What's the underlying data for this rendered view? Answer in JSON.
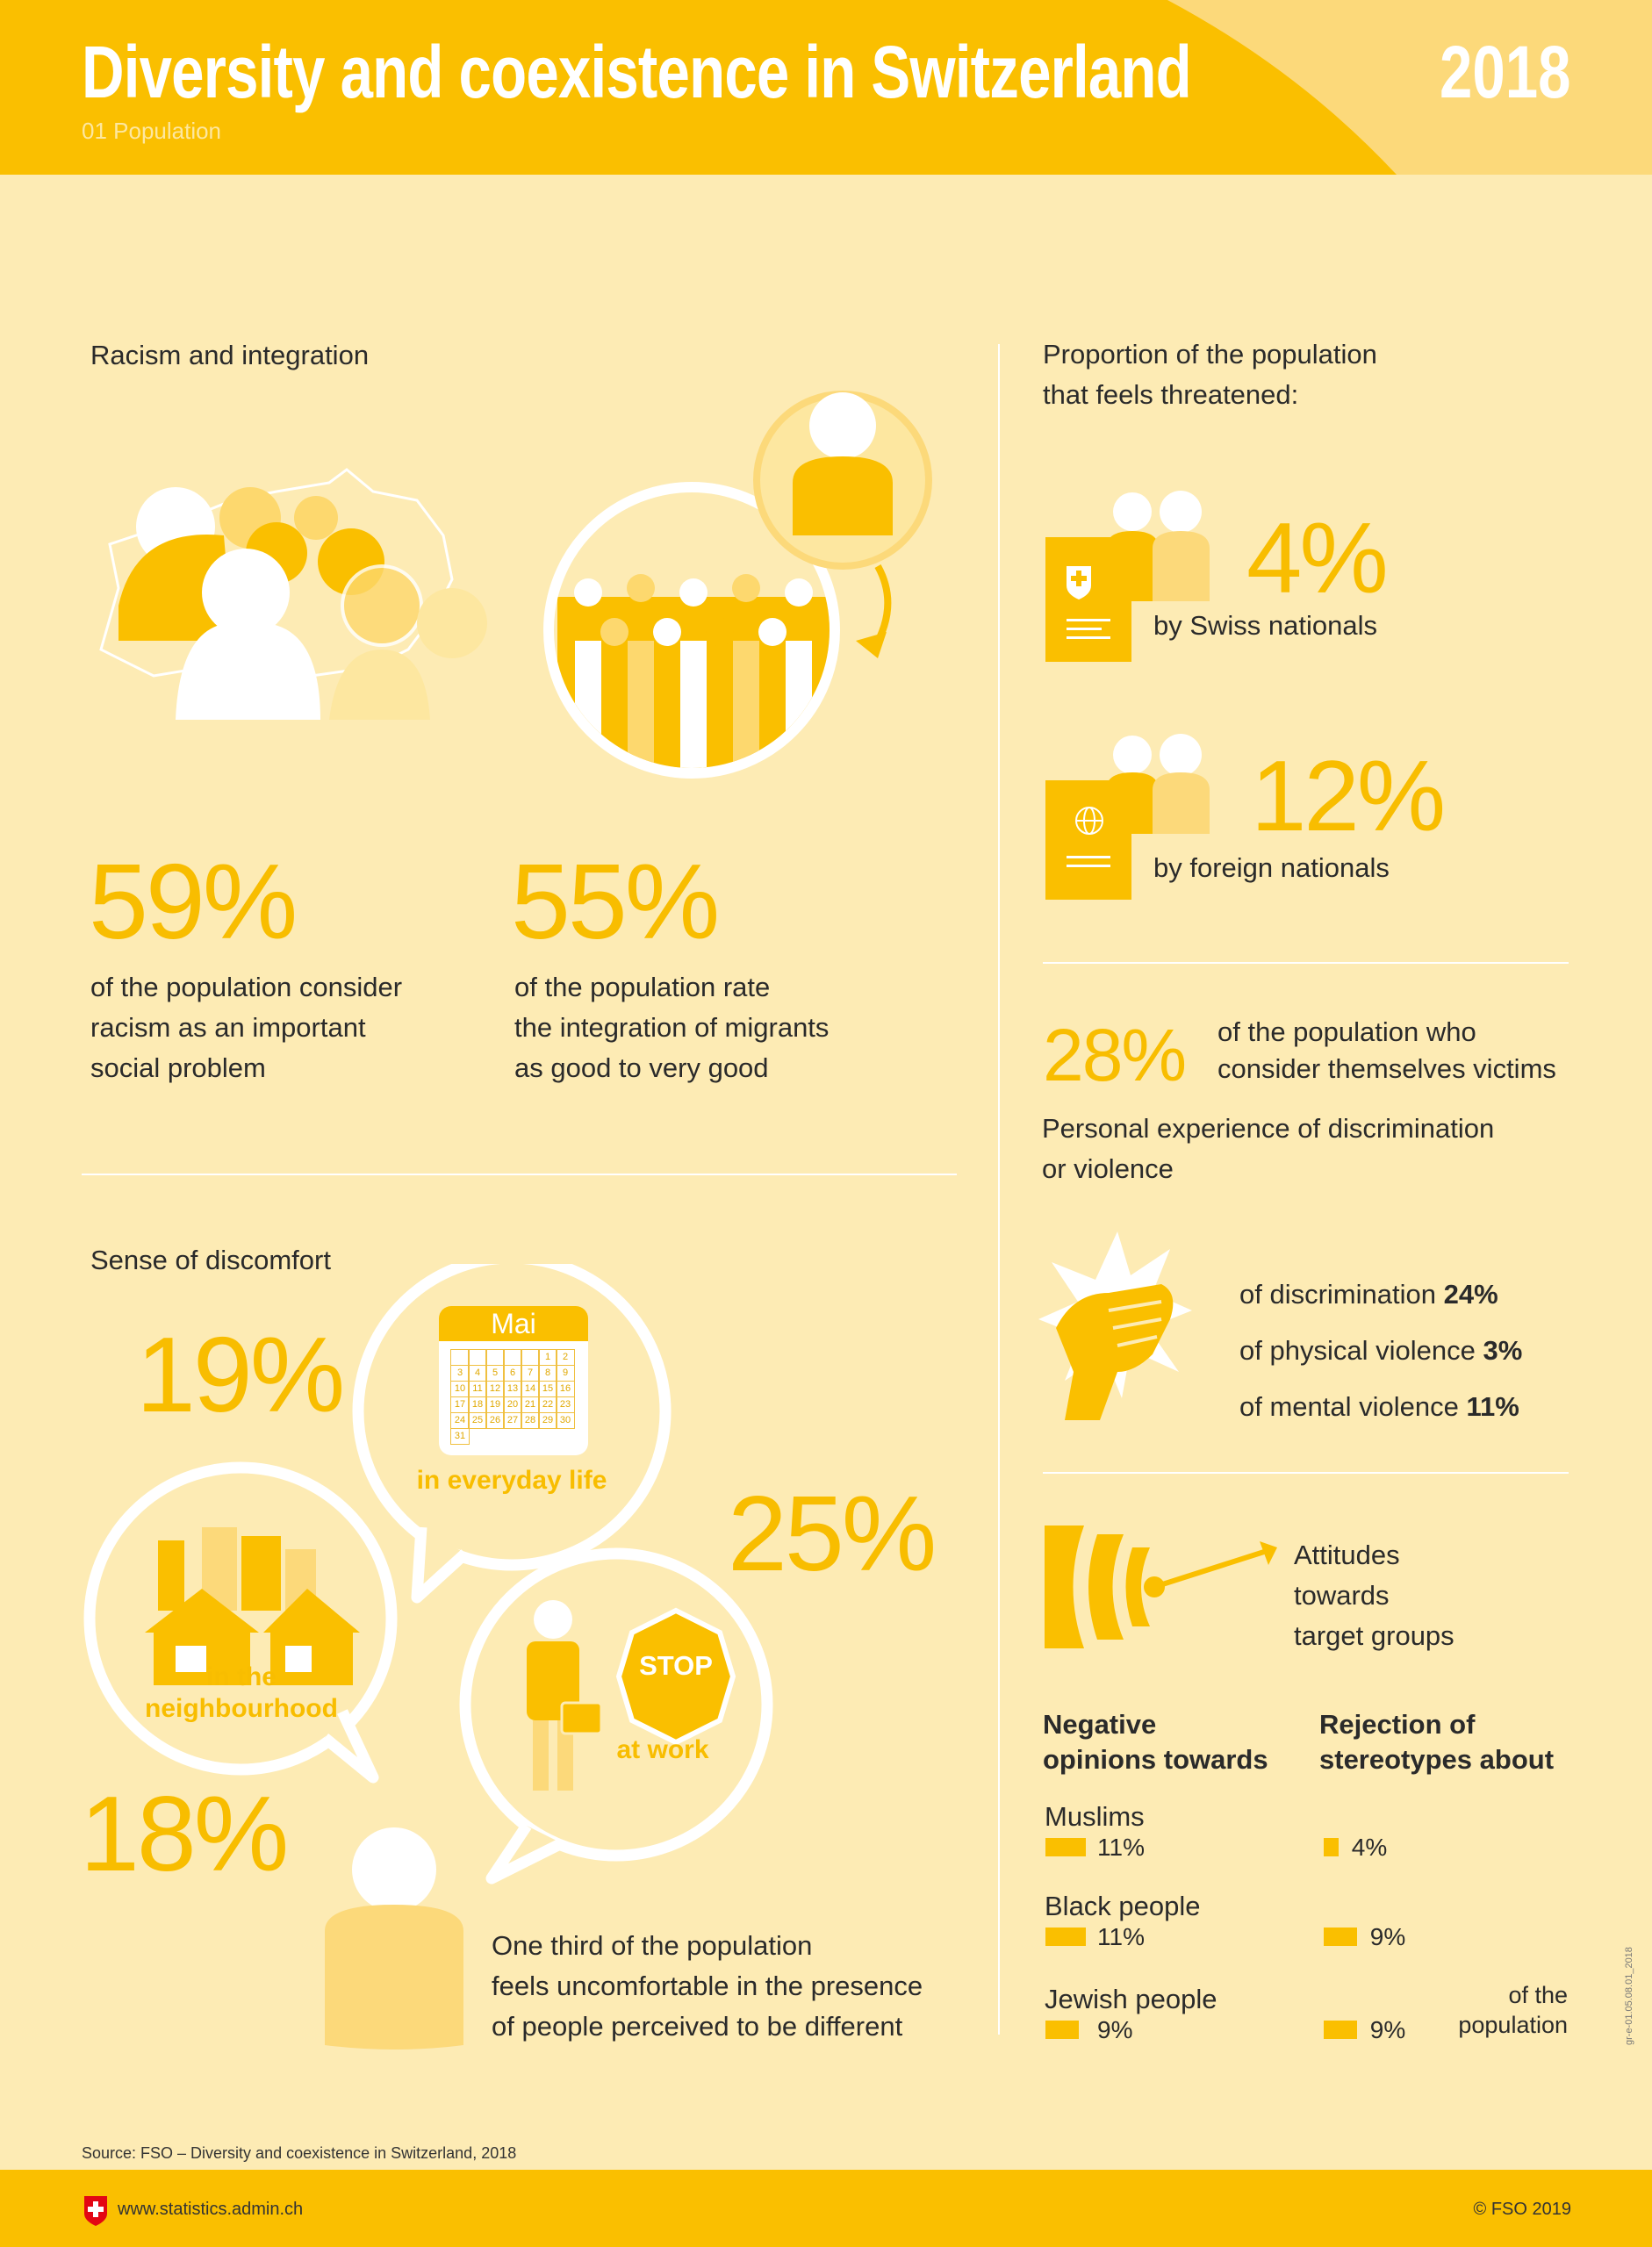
{
  "header": {
    "title": "Diversity and coexistence in Switzerland",
    "subtitle": "01 Population",
    "year": "2018"
  },
  "racism": {
    "heading": "Racism and integration",
    "stat1": {
      "value": "59%",
      "lines": [
        "of the population consider",
        "racism as an important",
        "social problem"
      ]
    },
    "stat2": {
      "value": "55%",
      "lines": [
        "of the population rate",
        "the integration of migrants",
        "as good to very good"
      ]
    }
  },
  "discomfort": {
    "heading": "Sense of discomfort",
    "everyday": {
      "value": "19%",
      "label": "in everyday life"
    },
    "work": {
      "value": "25%",
      "label": "at work",
      "sign": "STOP"
    },
    "neighbourhood": {
      "value": "18%",
      "label_lines": [
        "in the",
        "neighbourhood"
      ]
    },
    "calendar": {
      "month": "Mai",
      "days": [
        "",
        "",
        "",
        "",
        "",
        "1",
        "2",
        "3",
        "4",
        "5",
        "6",
        "7",
        "8",
        "9",
        "10",
        "11",
        "12",
        "13",
        "14",
        "15",
        "16",
        "17",
        "18",
        "19",
        "20",
        "21",
        "22",
        "23",
        "24",
        "25",
        "26",
        "27",
        "28",
        "29",
        "30",
        "31"
      ]
    },
    "summary_lines": [
      "One third of the population",
      "feels uncomfortable in the presence",
      "of people perceived to be different"
    ]
  },
  "threatened": {
    "heading_lines": [
      "Proportion of the population",
      "that feels threatened:"
    ],
    "swiss": {
      "value": "4%",
      "label": "by Swiss nationals"
    },
    "foreign": {
      "value": "12%",
      "label": "by foreign nationals"
    }
  },
  "victims": {
    "value": "28%",
    "lines": [
      "of the population who",
      "consider themselves victims"
    ],
    "heading_lines": [
      "Personal experience of discrimination",
      "or violence"
    ],
    "items": [
      {
        "label": "of discrimination",
        "value": "24%"
      },
      {
        "label": "of physical violence",
        "value": "3%"
      },
      {
        "label": "of mental violence",
        "value": "11%"
      }
    ]
  },
  "attitudes": {
    "heading_lines": [
      "Attitudes",
      "towards",
      "target groups"
    ],
    "col1_lines": [
      "Negative",
      "opinions towards"
    ],
    "col2_lines": [
      "Rejection of",
      "stereotypes about"
    ],
    "groups": [
      {
        "name": "Muslims",
        "negative": 11,
        "negative_label": "11%",
        "rejection": 4,
        "rejection_label": "4%"
      },
      {
        "name": "Black people",
        "negative": 11,
        "negative_label": "11%",
        "rejection": 9,
        "rejection_label": "9%"
      },
      {
        "name": "Jewish people",
        "negative": 9,
        "negative_label": "9%",
        "rejection": 9,
        "rejection_label": "9%"
      }
    ],
    "unit_lines": [
      "of the",
      "population"
    ]
  },
  "source": "Source: FSO – Diversity and coexistence in Switzerland, 2018",
  "footer": {
    "url": "www.statistics.admin.ch",
    "copyright": "© FSO 2019"
  },
  "code": "gr-e-01.05.08.01_2018",
  "colors": {
    "accent": "#fabf00",
    "background": "#fdebb4",
    "light": "#fdd86e",
    "swiss_red": "#e30613"
  }
}
